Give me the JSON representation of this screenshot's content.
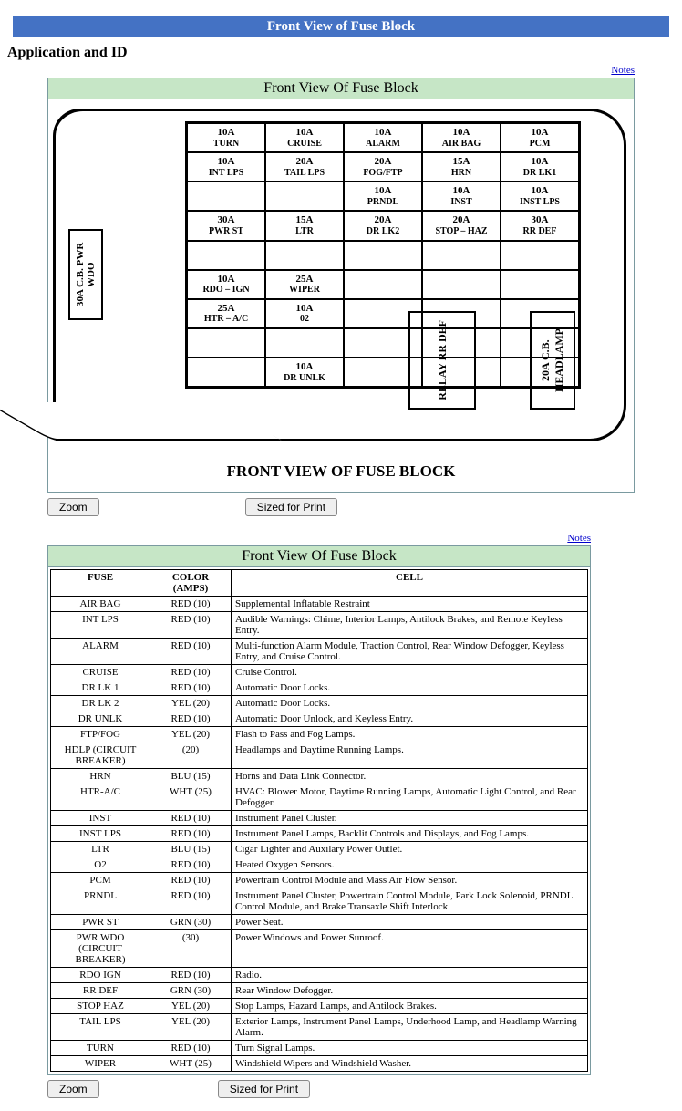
{
  "header": {
    "title": "Front View of Fuse Block"
  },
  "subtitle": "Application and ID",
  "notes_label": "Notes",
  "panels": {
    "diagram": {
      "title": "Front View Of Fuse Block",
      "caption": "FRONT VIEW OF FUSE BLOCK",
      "sidefuse": "30A C.B.\nPWR WDO",
      "relay": "RELAY\nRR DEF",
      "headlamp": "20A C.B.\nHEADLAMP",
      "rows": [
        [
          {
            "a": "10A",
            "b": "TURN"
          },
          {
            "a": "10A",
            "b": "CRUISE"
          },
          {
            "a": "10A",
            "b": "ALARM"
          },
          {
            "a": "10A",
            "b": "AIR BAG"
          },
          {
            "a": "10A",
            "b": "PCM"
          }
        ],
        [
          {
            "a": "10A",
            "b": "INT LPS"
          },
          {
            "a": "20A",
            "b": "TAIL LPS"
          },
          {
            "a": "20A",
            "b": "FOG/FTP"
          },
          {
            "a": "15A",
            "b": "HRN"
          },
          {
            "a": "10A",
            "b": "DR LK1"
          }
        ],
        [
          null,
          null,
          {
            "a": "10A",
            "b": "PRNDL"
          },
          {
            "a": "10A",
            "b": "INST"
          },
          {
            "a": "10A",
            "b": "INST LPS"
          }
        ],
        [
          {
            "a": "30A",
            "b": "PWR ST"
          },
          {
            "a": "15A",
            "b": "LTR"
          },
          {
            "a": "20A",
            "b": "DR LK2"
          },
          {
            "a": "20A",
            "b": "STOP – HAZ"
          },
          {
            "a": "30A",
            "b": "RR DEF"
          }
        ],
        [
          null,
          null,
          null,
          null,
          null
        ],
        [
          {
            "a": "10A",
            "b": "RDO – IGN"
          },
          {
            "a": "25A",
            "b": "WIPER"
          },
          null,
          null,
          null
        ],
        [
          {
            "a": "25A",
            "b": "HTR – A/C"
          },
          {
            "a": "10A",
            "b": "02"
          },
          null,
          null,
          null
        ],
        [
          null,
          null,
          null,
          null,
          null
        ],
        [
          null,
          {
            "a": "10A",
            "b": "DR UNLK"
          },
          null,
          null,
          null
        ]
      ]
    },
    "table": {
      "title": "Front View Of Fuse Block",
      "columns": [
        "FUSE",
        "COLOR (AMPS)",
        "CELL"
      ],
      "rows": [
        [
          "AIR BAG",
          "RED (10)",
          "Supplemental Inflatable Restraint"
        ],
        [
          "INT LPS",
          "RED (10)",
          "Audible Warnings: Chime, Interior Lamps, Antilock Brakes, and Remote Keyless Entry."
        ],
        [
          "ALARM",
          "RED (10)",
          "Multi-function Alarm Module, Traction Control, Rear Window Defogger, Keyless Entry, and Cruise Control."
        ],
        [
          "CRUISE",
          "RED (10)",
          "Cruise Control."
        ],
        [
          "DR LK 1",
          "RED (10)",
          "Automatic Door Locks."
        ],
        [
          "DR LK 2",
          "YEL (20)",
          "Automatic Door Locks."
        ],
        [
          "DR UNLK",
          "RED (10)",
          "Automatic Door Unlock, and Keyless Entry."
        ],
        [
          "FTP/FOG",
          "YEL (20)",
          "Flash to Pass and Fog Lamps."
        ],
        [
          "HDLP (CIRCUIT BREAKER)",
          "(20)",
          "Headlamps and Daytime Running Lamps."
        ],
        [
          "HRN",
          "BLU (15)",
          "Horns and Data Link Connector."
        ],
        [
          "HTR-A/C",
          "WHT (25)",
          "HVAC: Blower Motor, Daytime Running Lamps, Automatic Light Control, and Rear Defogger."
        ],
        [
          "INST",
          "RED (10)",
          "Instrument Panel Cluster."
        ],
        [
          "INST LPS",
          "RED (10)",
          "Instrument Panel Lamps, Backlit Controls and Displays, and Fog Lamps."
        ],
        [
          "LTR",
          "BLU (15)",
          "Cigar Lighter and Auxilary Power Outlet."
        ],
        [
          "O2",
          "RED (10)",
          "Heated Oxygen Sensors."
        ],
        [
          "PCM",
          "RED (10)",
          "Powertrain Control Module and Mass Air Flow Sensor."
        ],
        [
          "PRNDL",
          "RED (10)",
          "Instrument Panel Cluster, Powertrain Control Module, Park Lock Solenoid, PRNDL Control Module, and Brake Transaxle Shift Interlock."
        ],
        [
          "PWR ST",
          "GRN (30)",
          "Power Seat."
        ],
        [
          "PWR WDO (CIRCUIT BREAKER)",
          "(30)",
          "Power Windows and Power Sunroof."
        ],
        [
          "RDO IGN",
          "RED (10)",
          "Radio."
        ],
        [
          "RR DEF",
          "GRN (30)",
          "Rear Window Defogger."
        ],
        [
          "STOP HAZ",
          "YEL (20)",
          "Stop Lamps, Hazard Lamps, and Antilock Brakes."
        ],
        [
          "TAIL LPS",
          "YEL (20)",
          "Exterior Lamps, Instrument Panel Lamps, Underhood Lamp, and Headlamp Warning Alarm."
        ],
        [
          "TURN",
          "RED (10)",
          "Turn Signal Lamps."
        ],
        [
          "WIPER",
          "WHT (25)",
          "Windshield Wipers and Windshield Washer."
        ]
      ]
    }
  },
  "buttons": {
    "zoom": "Zoom",
    "print": "Sized for Print"
  }
}
